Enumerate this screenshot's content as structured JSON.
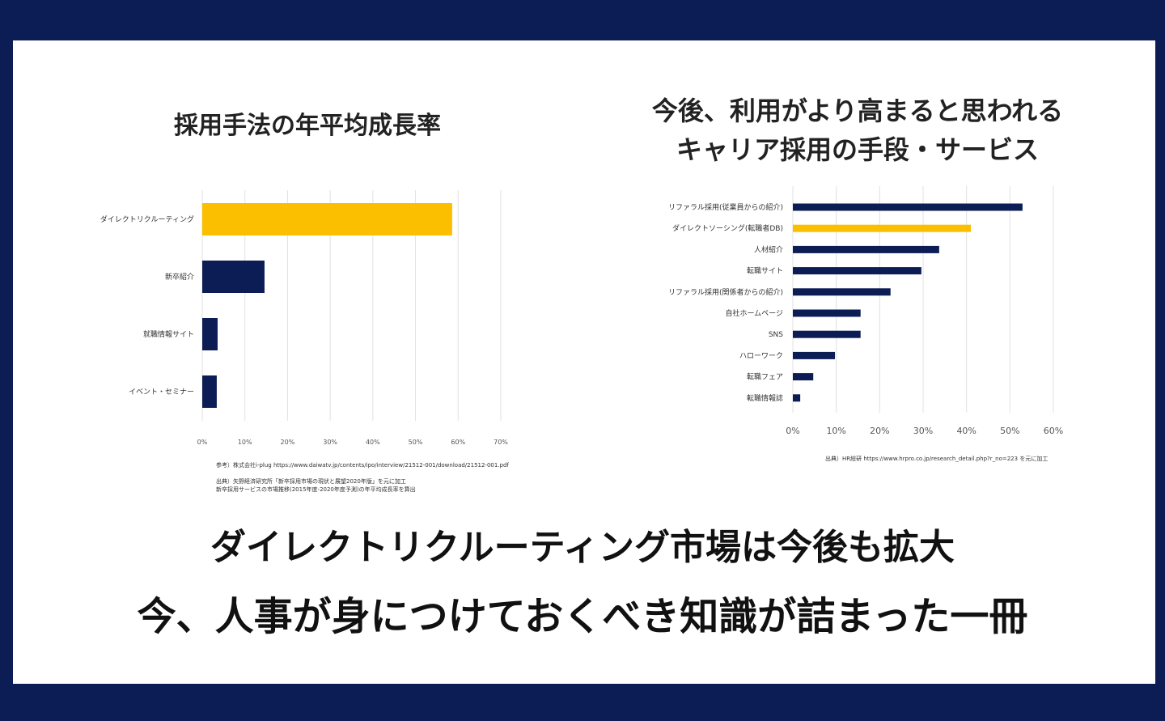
{
  "chart_data": [
    {
      "type": "bar",
      "orientation": "horizontal",
      "title": "採用手法の年平均成長率",
      "categories": [
        "ダイレクトリクルーティング",
        "新卒紹介",
        "就職情報サイト",
        "イベント・セミナー"
      ],
      "values": [
        58.6,
        14.6,
        3.6,
        3.4
      ],
      "highlight_index": 0,
      "xlim": [
        0,
        70
      ],
      "xticks": [
        "0%",
        "10%",
        "20%",
        "30%",
        "40%",
        "50%",
        "60%",
        "70%"
      ],
      "grid": true,
      "notes": [
        "参考）株式会社i-plug https://www.daiwatv.jp/contents/ipo/interview/21512-001/download/21512-001.pdf",
        "出典）矢野経済研究所「新卒採用市場の現状と展望2020年版」を元に加工",
        "新卒採用サービスの市場推移(2015年度-2020年度予測)の年平均成長率を算出"
      ]
    },
    {
      "type": "bar",
      "orientation": "horizontal",
      "title": [
        "今後、利用がより高まると思われる",
        "キャリア採用の手段・サービス"
      ],
      "categories": [
        "リファラル採用(従業員からの紹介)",
        "ダイレクトソーシング(転職者DB)",
        "人材紹介",
        "転職サイト",
        "リファラル採用(関係者からの紹介)",
        "自社ホームページ",
        "SNS",
        "ハローワーク",
        "転職フェア",
        "転職情報誌"
      ],
      "values": [
        52.9,
        41,
        33.7,
        29.6,
        22.5,
        15.6,
        15.6,
        9.7,
        4.7,
        1.7
      ],
      "highlight_index": 1,
      "xlim": [
        0,
        60
      ],
      "xticks": [
        "0%",
        "10%",
        "20%",
        "30%",
        "40%",
        "50%",
        "60%"
      ],
      "grid": true,
      "notes": [
        "出典）HR総研 https://www.hrpro.co.jp/research_detail.php?r_no=223 を元に加工"
      ]
    }
  ],
  "colors": {
    "navy": "#0c1d55",
    "highlight": "#fbbf00"
  },
  "headline": [
    "ダイレクトリクルーティング市場は今後も拡大",
    "今、人事が身につけておくべき知識が詰まった一冊"
  ]
}
